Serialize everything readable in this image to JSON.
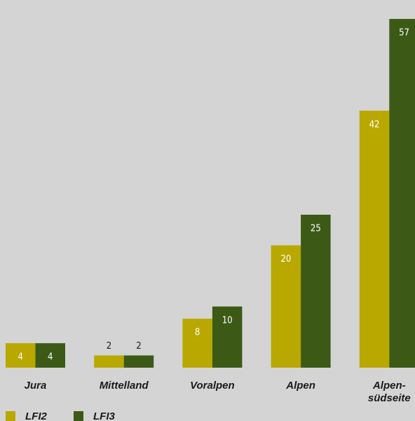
{
  "chart_data": {
    "type": "bar",
    "categories": [
      "Jura",
      "Mittelland",
      "Voralpen",
      "Alpen",
      "Alpen-\nsüdseite"
    ],
    "series": [
      {
        "name": "LFI2",
        "color": "#b9a800",
        "values": [
          4,
          2,
          8,
          20,
          42
        ]
      },
      {
        "name": "LFI3",
        "color": "#3c5a16",
        "values": [
          4,
          2,
          10,
          25,
          57
        ]
      }
    ]
  }
}
